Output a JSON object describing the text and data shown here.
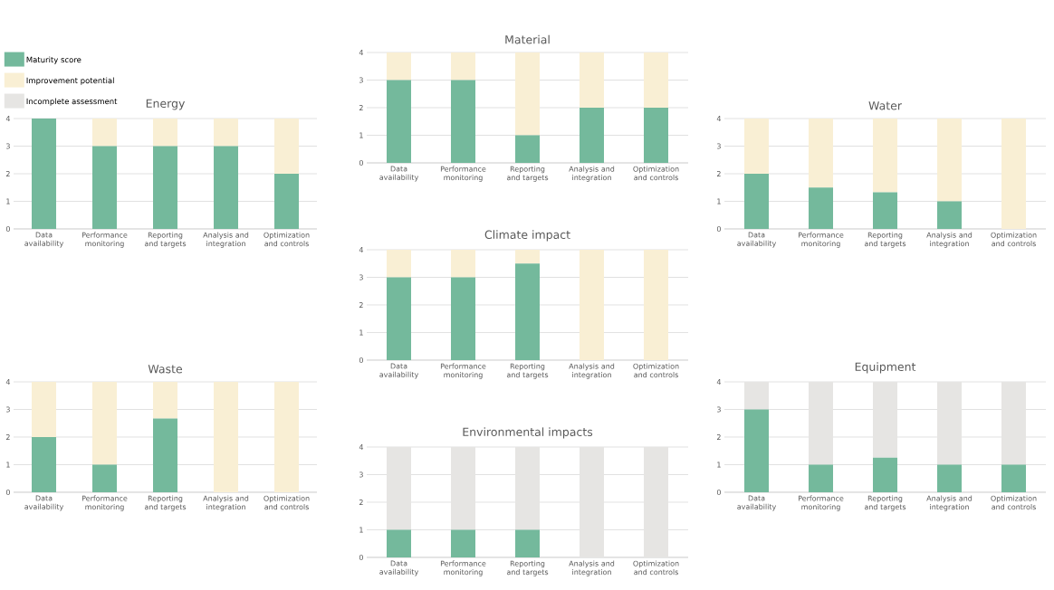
{
  "chart_data": [
    {
      "type": "bar",
      "title": "Material",
      "stacked": true,
      "grid": "y",
      "ylim": [
        0,
        4
      ],
      "yticks": [
        0,
        1,
        2,
        3,
        4
      ],
      "categories": [
        "Data availability",
        "Performance monitoring",
        "Reporting and targets",
        "Analysis and integration",
        "Optimization and controls"
      ],
      "series": [
        {
          "color": "#74b99c",
          "values": [
            3,
            3,
            1,
            2,
            2
          ]
        },
        {
          "color": "#f9efd4",
          "values": [
            1,
            1,
            3,
            2,
            2
          ]
        }
      ]
    },
    {
      "type": "bar",
      "title": "Energy",
      "stacked": true,
      "grid": "y",
      "ylim": [
        0,
        4
      ],
      "yticks": [
        0,
        1,
        2,
        3,
        4
      ],
      "legend": "top left",
      "categories": [
        "Data availability",
        "Performance monitoring",
        "Reporting and targets",
        "Analysis and integration",
        "Optimization and controls"
      ],
      "series": [
        {
          "name": "Maturity score",
          "color": "#74b99c",
          "values": [
            4,
            3,
            3,
            3,
            2
          ]
        },
        {
          "name": "Improvement potential",
          "color": "#f9efd4",
          "values": [
            0,
            1,
            1,
            1,
            2
          ]
        },
        {
          "name": "Incomplete assessment",
          "color": "#e6e5e3",
          "values": [
            0,
            0,
            0,
            0,
            0
          ]
        }
      ]
    },
    {
      "type": "bar",
      "title": "Water",
      "stacked": true,
      "grid": "y",
      "ylim": [
        0,
        4
      ],
      "yticks": [
        0,
        1,
        2,
        3,
        4
      ],
      "categories": [
        "Data availability",
        "Performance monitoring",
        "Reporting and targets",
        "Analysis and integration",
        "Optimization and controls"
      ],
      "series": [
        {
          "color": "#74b99c",
          "values": [
            2,
            1.5,
            1.33,
            1,
            0
          ]
        },
        {
          "color": "#f9efd4",
          "values": [
            2,
            2.5,
            2.67,
            3,
            4
          ]
        }
      ]
    },
    {
      "type": "bar",
      "title": "Climate impact",
      "stacked": true,
      "grid": "y",
      "ylim": [
        0,
        4
      ],
      "yticks": [
        0,
        1,
        2,
        3,
        4
      ],
      "categories": [
        "Data availability",
        "Performance monitoring",
        "Reporting and targets",
        "Analysis and integration",
        "Optimization and controls"
      ],
      "series": [
        {
          "color": "#74b99c",
          "values": [
            3,
            3,
            3.5,
            0,
            0
          ]
        },
        {
          "color": "#f9efd4",
          "values": [
            1,
            1,
            0.5,
            4,
            4
          ]
        }
      ]
    },
    {
      "type": "bar",
      "title": "Waste",
      "stacked": true,
      "grid": "y",
      "ylim": [
        0,
        4
      ],
      "yticks": [
        0,
        1,
        2,
        3,
        4
      ],
      "categories": [
        "Data availability",
        "Performance monitoring",
        "Reporting and targets",
        "Analysis and integration",
        "Optimization and controls"
      ],
      "series": [
        {
          "color": "#74b99c",
          "values": [
            2,
            1,
            2.67,
            0,
            0
          ]
        },
        {
          "color": "#f9efd4",
          "values": [
            2,
            3,
            1.33,
            4,
            4
          ]
        }
      ]
    },
    {
      "type": "bar",
      "title": "Equipment",
      "stacked": true,
      "grid": "y",
      "ylim": [
        0,
        4
      ],
      "yticks": [
        0,
        1,
        2,
        3,
        4
      ],
      "categories": [
        "Data availability",
        "Performance monitoring",
        "Reporting and targets",
        "Analysis and integration",
        "Optimization and controls"
      ],
      "series": [
        {
          "color": "#74b99c",
          "values": [
            3,
            1,
            1.25,
            1,
            1
          ]
        },
        {
          "color": "#e6e5e3",
          "values": [
            1,
            3,
            2.75,
            3,
            3
          ]
        }
      ]
    },
    {
      "type": "bar",
      "title": "Environmental impacts",
      "stacked": true,
      "grid": "y",
      "ylim": [
        0,
        4
      ],
      "yticks": [
        0,
        1,
        2,
        3,
        4
      ],
      "categories": [
        "Data availability",
        "Performance monitoring",
        "Reporting and targets",
        "Analysis and integration",
        "Optimization and controls"
      ],
      "series": [
        {
          "color": "#74b99c",
          "values": [
            1,
            1,
            1,
            0,
            0
          ]
        },
        {
          "color": "#e6e5e3",
          "values": [
            3,
            3,
            3,
            4,
            4
          ]
        }
      ]
    }
  ]
}
